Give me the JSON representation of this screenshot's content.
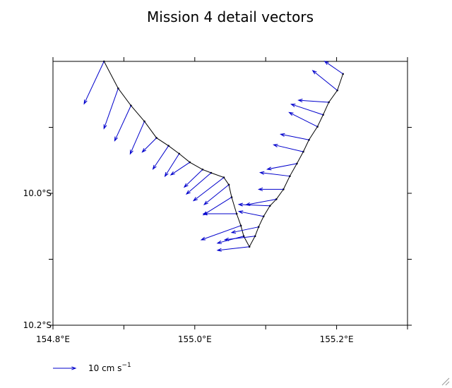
{
  "chart_data": {
    "type": "quiver",
    "title": "Mission 4 detail vectors",
    "x": [
      154.872,
      154.892,
      154.91,
      154.929,
      154.946,
      154.963,
      154.978,
      154.993,
      155.011,
      155.023,
      155.041,
      155.048,
      155.052,
      155.059,
      155.065,
      155.069,
      155.077,
      155.085,
      155.09,
      155.097,
      155.106,
      155.115,
      155.125,
      155.134,
      155.144,
      155.153,
      155.161,
      155.173,
      155.181,
      155.189,
      155.201,
      155.209
    ],
    "y": [
      -9.8,
      -9.841,
      -9.867,
      -9.891,
      -9.916,
      -9.928,
      -9.94,
      -9.953,
      -9.964,
      -9.969,
      -9.976,
      -9.987,
      -10.006,
      -10.031,
      -10.049,
      -10.065,
      -10.081,
      -10.065,
      -10.051,
      -10.035,
      -10.019,
      -10.009,
      -9.994,
      -9.974,
      -9.955,
      -9.937,
      -9.919,
      -9.899,
      -9.881,
      -9.862,
      -9.844,
      -9.819
    ],
    "u": [
      -8.8,
      -6.3,
      -7.2,
      -6.3,
      -6.3,
      -6.9,
      -6.3,
      -8.4,
      -8.1,
      -10.9,
      -13.4,
      -10.9,
      -12.5,
      -14.7,
      -17.5,
      -11.6,
      -14.1,
      -13.4,
      -11.9,
      -10.9,
      -13.8,
      -13.4,
      -10.9,
      -13.1,
      -13.1,
      -13.1,
      -12.5,
      -12.5,
      -14.1,
      -13.4,
      -10.9,
      -8.1
    ],
    "v": [
      -18.8,
      -17.8,
      -15.6,
      -14.4,
      -6.3,
      -10.3,
      -10.0,
      -5.6,
      -7.8,
      -9.4,
      -10.3,
      -8.8,
      -7.8,
      0,
      -6.3,
      -3.1,
      -1.6,
      -1.6,
      -2.5,
      2.2,
      0.6,
      -2.5,
      0,
      1.6,
      -2.5,
      3.1,
      2.5,
      6.3,
      4.7,
      0.9,
      8.8,
      5.6
    ],
    "track_color": "#000000",
    "vector_color": "#0000cc",
    "xlim": [
      154.8,
      155.3
    ],
    "ylim": [
      -10.2,
      -9.8
    ],
    "xticks": [
      {
        "value": 154.8,
        "label": "154.8°E"
      },
      {
        "value": 155.0,
        "label": "155.0°E"
      },
      {
        "value": 155.2,
        "label": "155.2°E"
      }
    ],
    "xminor_ticks": [
      154.9,
      155.1,
      155.3
    ],
    "yticks": [
      {
        "value": -10.0,
        "label": "10.0°S"
      },
      {
        "value": -10.2,
        "label": "10.2°S"
      }
    ],
    "yminor_ticks": [
      -9.9,
      -10.1
    ],
    "legend": {
      "scale": 10,
      "label": "10 cm s",
      "label_sup": "−1"
    }
  }
}
